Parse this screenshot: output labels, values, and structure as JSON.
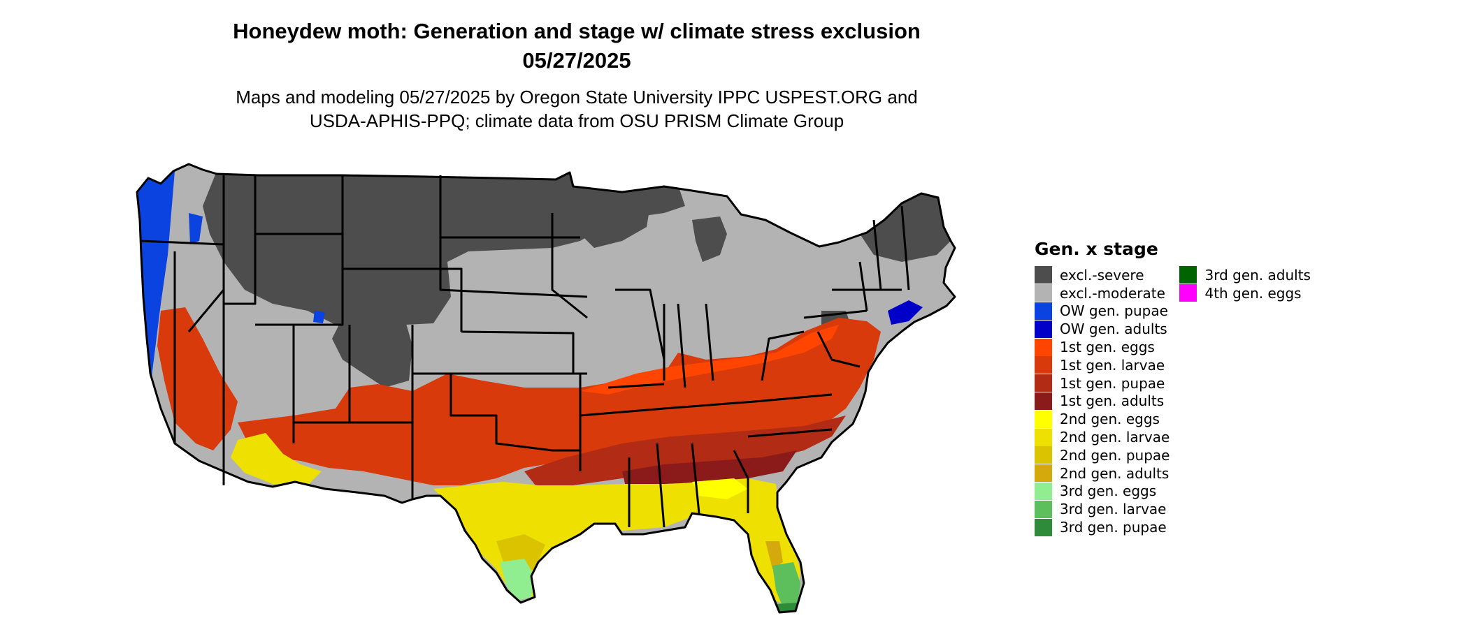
{
  "title": {
    "line1": "Honeydew moth: Generation and stage w/ climate stress exclusion",
    "line2": "05/27/2025"
  },
  "subtitle": {
    "line1": "Maps and modeling 05/27/2025 by Oregon State University IPPC USPEST.ORG and",
    "line2": "USDA-APHIS-PPQ; climate data from OSU PRISM Climate Group"
  },
  "legend": {
    "title": "Gen. x stage",
    "col1": [
      {
        "label": "excl.-severe",
        "color": "#4d4d4d"
      },
      {
        "label": "excl.-moderate",
        "color": "#b3b3b3"
      },
      {
        "label": "OW gen. pupae",
        "color": "#0a43e0"
      },
      {
        "label": "OW gen. adults",
        "color": "#0000c8"
      },
      {
        "label": "1st gen. eggs",
        "color": "#ff4500"
      },
      {
        "label": "1st gen. larvae",
        "color": "#d93a0c"
      },
      {
        "label": "1st gen. pupae",
        "color": "#b22b14"
      },
      {
        "label": "1st gen. adults",
        "color": "#8b1a1a"
      },
      {
        "label": "2nd gen. eggs",
        "color": "#ffff00"
      },
      {
        "label": "2nd gen. larvae",
        "color": "#eee000"
      },
      {
        "label": "2nd gen. pupae",
        "color": "#dcc300"
      },
      {
        "label": "2nd gen. adults",
        "color": "#d4a90c"
      },
      {
        "label": "3rd gen. eggs",
        "color": "#90ee90"
      },
      {
        "label": "3rd gen. larvae",
        "color": "#5cbf5c"
      },
      {
        "label": "3rd gen. pupae",
        "color": "#2e8b3a"
      }
    ],
    "col2": [
      {
        "label": "3rd gen. adults",
        "color": "#006400"
      },
      {
        "label": "4th gen. eggs",
        "color": "#ff00ff"
      }
    ]
  },
  "map": {
    "colors": {
      "severe": "#4d4d4d",
      "moderate": "#b3b3b3",
      "ow_pupae": "#0a43e0",
      "ow_adults": "#0000c8",
      "g1_eggs": "#ff4500",
      "g1_larvae": "#d93a0c",
      "g1_pupae": "#b22b14",
      "g1_adults": "#8b1a1a",
      "g2_eggs": "#ffff00",
      "g2_larvae": "#eee000",
      "g2_pupae": "#dcc300",
      "g2_adults": "#d4a90c",
      "g3_eggs": "#90ee90",
      "g3_larvae": "#5cbf5c",
      "g3_pupae": "#2e8b3a",
      "border": "#000000"
    }
  }
}
